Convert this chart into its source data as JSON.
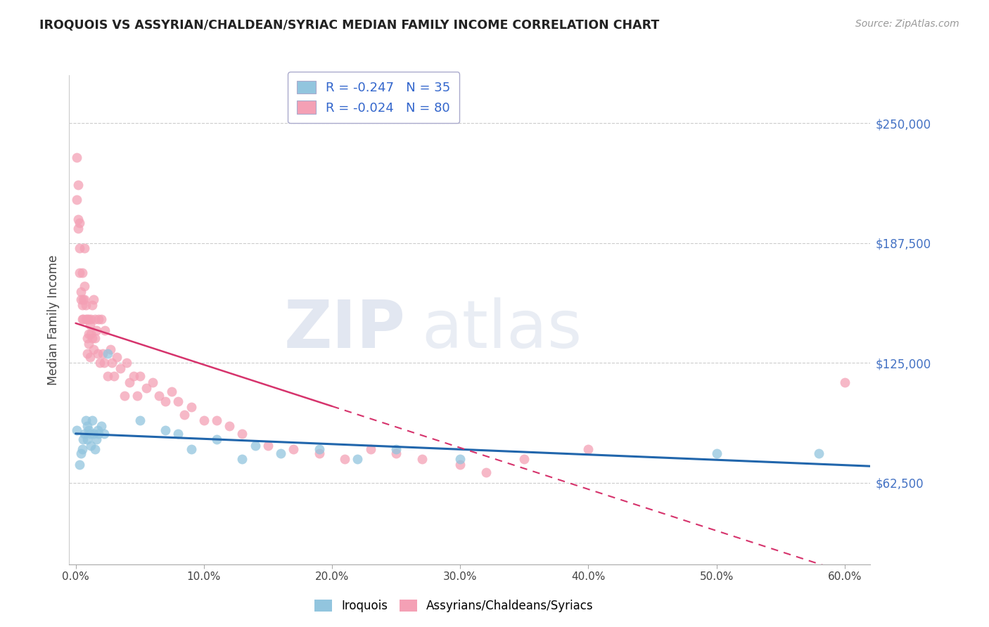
{
  "title": "IROQUOIS VS ASSYRIAN/CHALDEAN/SYRIAC MEDIAN FAMILY INCOME CORRELATION CHART",
  "source": "Source: ZipAtlas.com",
  "ylabel": "Median Family Income",
  "ytick_labels": [
    "$62,500",
    "$125,000",
    "$187,500",
    "$250,000"
  ],
  "ytick_vals": [
    62500,
    125000,
    187500,
    250000
  ],
  "ylim": [
    20000,
    275000
  ],
  "xlim": [
    -0.005,
    0.62
  ],
  "watermark_line1": "ZIP",
  "watermark_line2": "atlas",
  "legend_iroquois_R": "-0.247",
  "legend_iroquois_N": "35",
  "legend_assyrian_R": "-0.024",
  "legend_assyrian_N": "80",
  "color_iroquois": "#92c5de",
  "color_assyrian": "#f4a0b5",
  "trendline_iroquois_color": "#2166ac",
  "trendline_assyrian_color": "#d6336c",
  "background_color": "#ffffff",
  "grid_color": "#cccccc",
  "iroquois_x": [
    0.001,
    0.003,
    0.004,
    0.005,
    0.006,
    0.007,
    0.008,
    0.009,
    0.009,
    0.01,
    0.011,
    0.012,
    0.013,
    0.014,
    0.015,
    0.016,
    0.017,
    0.018,
    0.02,
    0.022,
    0.025,
    0.05,
    0.07,
    0.08,
    0.09,
    0.11,
    0.13,
    0.14,
    0.16,
    0.19,
    0.22,
    0.25,
    0.3,
    0.5,
    0.58
  ],
  "iroquois_y": [
    90000,
    72000,
    78000,
    80000,
    85000,
    88000,
    95000,
    92000,
    85000,
    90000,
    88000,
    82000,
    95000,
    88000,
    80000,
    85000,
    90000,
    88000,
    92000,
    88000,
    130000,
    95000,
    90000,
    88000,
    80000,
    85000,
    75000,
    82000,
    78000,
    80000,
    75000,
    80000,
    75000,
    78000,
    78000
  ],
  "assyrian_x": [
    0.001,
    0.001,
    0.002,
    0.002,
    0.002,
    0.003,
    0.003,
    0.003,
    0.004,
    0.004,
    0.005,
    0.005,
    0.005,
    0.006,
    0.006,
    0.007,
    0.007,
    0.007,
    0.008,
    0.008,
    0.009,
    0.009,
    0.009,
    0.01,
    0.01,
    0.01,
    0.011,
    0.011,
    0.012,
    0.012,
    0.013,
    0.013,
    0.014,
    0.014,
    0.015,
    0.015,
    0.016,
    0.017,
    0.018,
    0.019,
    0.02,
    0.021,
    0.022,
    0.023,
    0.025,
    0.027,
    0.028,
    0.03,
    0.032,
    0.035,
    0.038,
    0.04,
    0.042,
    0.045,
    0.048,
    0.05,
    0.055,
    0.06,
    0.065,
    0.07,
    0.075,
    0.08,
    0.085,
    0.09,
    0.1,
    0.11,
    0.12,
    0.13,
    0.15,
    0.17,
    0.19,
    0.21,
    0.23,
    0.25,
    0.27,
    0.3,
    0.32,
    0.35,
    0.4,
    0.6
  ],
  "assyrian_y": [
    232000,
    210000,
    200000,
    195000,
    218000,
    172000,
    185000,
    198000,
    162000,
    158000,
    172000,
    155000,
    148000,
    158000,
    148000,
    185000,
    158000,
    165000,
    155000,
    148000,
    138000,
    148000,
    130000,
    135000,
    148000,
    140000,
    145000,
    128000,
    148000,
    140000,
    155000,
    138000,
    158000,
    132000,
    148000,
    138000,
    142000,
    130000,
    148000,
    125000,
    148000,
    130000,
    125000,
    142000,
    118000,
    132000,
    125000,
    118000,
    128000,
    122000,
    108000,
    125000,
    115000,
    118000,
    108000,
    118000,
    112000,
    115000,
    108000,
    105000,
    110000,
    105000,
    98000,
    102000,
    95000,
    95000,
    92000,
    88000,
    82000,
    80000,
    78000,
    75000,
    80000,
    78000,
    75000,
    72000,
    68000,
    75000,
    80000,
    115000
  ]
}
